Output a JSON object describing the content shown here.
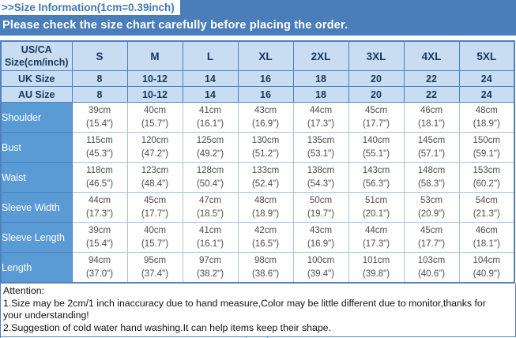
{
  "title": ">>Size Information(1cm=0.39inch)",
  "banner": "Please check the size chart carefully before placing the order.",
  "colors": {
    "banner_blue": "#4a7ebb",
    "light_blue": "#c8ddf1",
    "label_blue": "#5b9bd5",
    "title_blue": "#3e79b6",
    "border_dark": "#4f81bd",
    "border_light": "#a9c3de",
    "header_text": "#17375d",
    "data_text": "#4d4d4d"
  },
  "table": {
    "corner_label": "US/CA Size(cm/inch)",
    "size_columns": [
      "S",
      "M",
      "L",
      "XL",
      "2XL",
      "3XL",
      "4XL",
      "5XL"
    ],
    "size_rows": [
      {
        "label": "UK Size",
        "values": [
          "8",
          "10-12",
          "14",
          "16",
          "18",
          "20",
          "22",
          "24"
        ]
      },
      {
        "label": "AU Size",
        "values": [
          "8",
          "10-12",
          "14",
          "16",
          "18",
          "20",
          "22",
          "24"
        ]
      }
    ],
    "measurement_rows": [
      {
        "label": "Shoulder",
        "cm": [
          "39cm",
          "40cm",
          "41cm",
          "43cm",
          "44cm",
          "45cm",
          "46cm",
          "48cm"
        ],
        "inch": [
          "(15.4\")",
          "(15.7\")",
          "(16.1\")",
          "(16.9\")",
          "(17.3\")",
          "(17.7\")",
          "(18.1\")",
          "(18.9\")"
        ]
      },
      {
        "label": "Bust",
        "cm": [
          "115cm",
          "120cm",
          "125cm",
          "130cm",
          "135cm",
          "140cm",
          "145cm",
          "150cm"
        ],
        "inch": [
          "(45.3\")",
          "(47.2\")",
          "(49.2\")",
          "(51.2\")",
          "(53.1\")",
          "(55.1\")",
          "(57.1\")",
          "(59.1\")"
        ]
      },
      {
        "label": "Waist",
        "cm": [
          "118cm",
          "123cm",
          "128cm",
          "133cm",
          "138cm",
          "143cm",
          "148cm",
          "153cm"
        ],
        "inch": [
          "(46.5\")",
          "(48.4\")",
          "(50.4\")",
          "(52.4\")",
          "(54.3\")",
          "(56.3\")",
          "(58.3\")",
          "(60.2\")"
        ]
      },
      {
        "label": "Sleeve Width",
        "cm": [
          "44cm",
          "45cm",
          "47cm",
          "48cm",
          "50cm",
          "51cm",
          "53cm",
          "54cm"
        ],
        "inch": [
          "(17.3\")",
          "(17.7\")",
          "(18.5\")",
          "(18.9\")",
          "(19.7\")",
          "(20.1\")",
          "(20.9\")",
          "(21.3\")"
        ]
      },
      {
        "label": "Sleeve Length",
        "cm": [
          "39cm",
          "40cm",
          "41cm",
          "42cm",
          "43cm",
          "44cm",
          "45cm",
          "46cm"
        ],
        "inch": [
          "(15.4\")",
          "(15.7\")",
          "(16.1\")",
          "(16.5\")",
          "(16.9\")",
          "(17.3\")",
          "(17.7\")",
          "(18.1\")"
        ]
      },
      {
        "label": "Length",
        "cm": [
          "94cm",
          "95cm",
          "97cm",
          "98cm",
          "100cm",
          "101cm",
          "103cm",
          "104cm"
        ],
        "inch": [
          "(37.0\")",
          "(37.4\")",
          "(38.2\")",
          "(38.6\")",
          "(39.4\")",
          "(39.8\")",
          "(40.6\")",
          "(40.9\")"
        ]
      }
    ]
  },
  "attention": {
    "lines": [
      "Attention:",
      "1.Size may be 2cm/1 inch inaccuracy due to hand measure,Color may be little different due to monitor,thanks for",
      "your understanding!",
      "2.Suggestion of cold water hand washing.It can help items keep their shape."
    ]
  }
}
